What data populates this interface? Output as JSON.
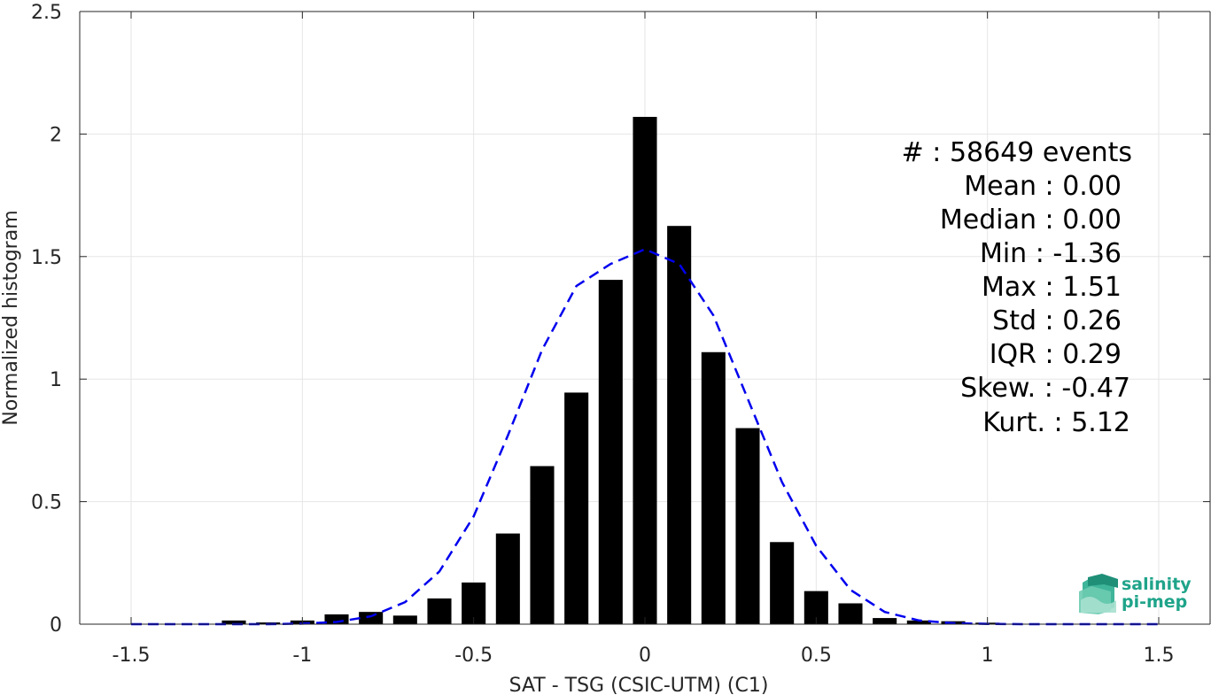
{
  "chart_data": {
    "type": "bar",
    "xlabel": "SAT - TSG (CSIC-UTM) (C1)",
    "ylabel": "Normalized histogram",
    "xlim": [
      -1.65,
      1.65
    ],
    "ylim": [
      0,
      2.5
    ],
    "grid": true,
    "xticks": [
      -1.5,
      -1,
      -0.5,
      0,
      0.5,
      1,
      1.5
    ],
    "xtick_labels": [
      "-1.5",
      "-1",
      "-0.5",
      "0",
      "0.5",
      "1",
      "1.5"
    ],
    "yticks": [
      0,
      0.5,
      1,
      1.5,
      2,
      2.5
    ],
    "ytick_labels": [
      "0",
      "0.5",
      "1",
      "1.5",
      "2",
      "2.5"
    ],
    "bar_width": 0.07,
    "bars": {
      "x": [
        -1.2,
        -1.1,
        -1.0,
        -0.9,
        -0.8,
        -0.7,
        -0.6,
        -0.5,
        -0.4,
        -0.3,
        -0.2,
        -0.1,
        0.0,
        0.1,
        0.2,
        0.3,
        0.4,
        0.5,
        0.6,
        0.7,
        0.8,
        0.9,
        1.0
      ],
      "values": [
        0.015,
        0.007,
        0.015,
        0.04,
        0.05,
        0.035,
        0.105,
        0.17,
        0.37,
        0.645,
        0.945,
        1.405,
        2.07,
        1.625,
        1.11,
        0.8,
        0.335,
        0.135,
        0.085,
        0.025,
        0.015,
        0.012,
        0.006
      ]
    },
    "fit": {
      "style": "dashed",
      "color": "#0000ee",
      "x": [
        -1.5,
        -1.4,
        -1.3,
        -1.2,
        -1.1,
        -1.0,
        -0.9,
        -0.8,
        -0.7,
        -0.6,
        -0.5,
        -0.4,
        -0.3,
        -0.2,
        -0.1,
        0.0,
        0.1,
        0.2,
        0.3,
        0.4,
        0.5,
        0.6,
        0.7,
        0.8,
        0.9,
        1.0,
        1.1,
        1.2,
        1.3,
        1.4,
        1.5
      ],
      "y": [
        0.0,
        0.0,
        0.0,
        0.0,
        0.0,
        0.002,
        0.009,
        0.032,
        0.09,
        0.215,
        0.44,
        0.77,
        1.12,
        1.38,
        1.47,
        1.53,
        1.47,
        1.26,
        0.92,
        0.58,
        0.32,
        0.14,
        0.05,
        0.015,
        0.004,
        0.001,
        0.0,
        0.0,
        0.0,
        0.0,
        0.0
      ]
    },
    "bar_color": "#000000"
  },
  "stats": {
    "events": "#  : 58649 events",
    "mean": "Mean : 0.00",
    "median": "Median : 0.00",
    "min": "Min : -1.36",
    "max": "Max : 1.51",
    "std": "Std : 0.26",
    "iqr": "IQR : 0.29",
    "skew": "Skew. : -0.47",
    "kurt": "Kurt. : 5.12"
  },
  "logo": {
    "line1": "salinity",
    "line2": "pi-mep",
    "color": "#1fa48a"
  }
}
